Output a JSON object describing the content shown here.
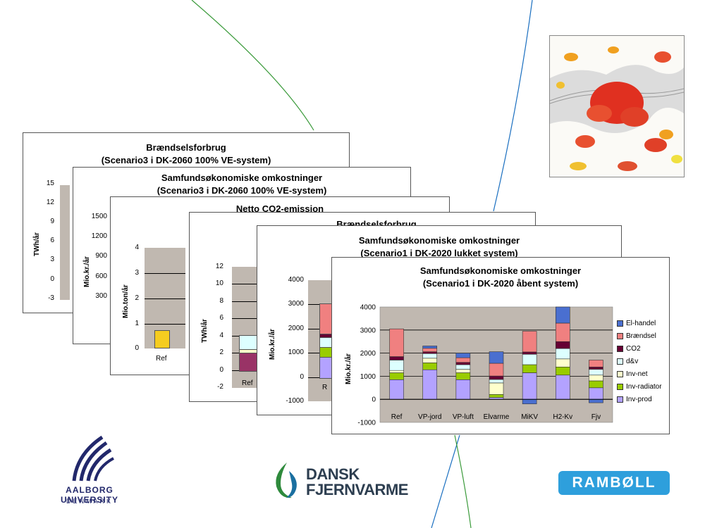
{
  "cards": {
    "c1": {
      "title_line1": "Brændselsforbrug",
      "title_line2": "(Scenario3 i DK-2060 100% VE-system)",
      "ylabel": "TWh/år",
      "ticks": [
        "15",
        "12",
        "9",
        "6",
        "3",
        "0",
        "-3"
      ]
    },
    "c2": {
      "title_line1": "Samfundsøkonomiske omkostninger",
      "title_line2": "(Scenario3 i DK-2060 100% VE-system)",
      "ylabel": "Mio.kr./år",
      "ticks": [
        "1500",
        "1200",
        "900",
        "600",
        "300"
      ]
    },
    "c3": {
      "title_line1": "Netto CO2-emission",
      "ylabel": "Mio.ton/år",
      "ticks": [
        "4",
        "3",
        "2",
        "1",
        "0"
      ],
      "xcat": "Ref"
    },
    "c4": {
      "title_line1": "Brændselsforbrug",
      "ylabel": "TWh/år",
      "ticks": [
        "12",
        "10",
        "8",
        "6",
        "4",
        "2",
        "0",
        "-2"
      ],
      "xcat": "Ref"
    },
    "c5": {
      "title_line1": "Samfundsøkonomiske omkostninger",
      "title_line2": "(Scenario1 i DK-2020 lukket system)",
      "ylabel": "Mio.kr./år",
      "ticks": [
        "4000",
        "3000",
        "2000",
        "1000",
        "0",
        "-1000"
      ],
      "xcat": "R"
    }
  },
  "chart_data": {
    "type": "bar",
    "stacked": true,
    "title": "Samfundsøkonomiske omkostninger",
    "subtitle": "(Scenario1 i DK-2020 åbent system)",
    "xlabel": "",
    "ylabel": "Mio.kr./år",
    "ylim": [
      -1000,
      4000
    ],
    "yticks": [
      4000,
      3000,
      2000,
      1000,
      0,
      -1000
    ],
    "grid": true,
    "legend_position": "right",
    "categories": [
      "Ref",
      "VP-jord",
      "VP-luft",
      "Elvarme",
      "MiKV",
      "H2-Kv",
      "Fjv"
    ],
    "series": [
      {
        "name": "Inv-prod",
        "color": "#b3a2ff",
        "values": [
          850,
          1280,
          850,
          80,
          1150,
          1050,
          500
        ]
      },
      {
        "name": "Inv-radiator",
        "color": "#99cc00",
        "values": [
          300,
          300,
          300,
          130,
          350,
          350,
          300
        ]
      },
      {
        "name": "Inv-net",
        "color": "#ffffcc",
        "values": [
          100,
          200,
          150,
          500,
          0,
          350,
          250
        ]
      },
      {
        "name": "d&v",
        "color": "#ddffff",
        "values": [
          450,
          200,
          200,
          150,
          450,
          450,
          250
        ]
      },
      {
        "name": "CO2",
        "color": "#660033",
        "values": [
          150,
          80,
          100,
          150,
          100,
          300,
          100
        ]
      },
      {
        "name": "Brændsel",
        "color": "#f08080",
        "values": [
          1200,
          150,
          200,
          550,
          900,
          800,
          300
        ]
      },
      {
        "name": "El-handel",
        "color": "#4a6fd0",
        "values": [
          0,
          100,
          200,
          500,
          -200,
          700,
          -150
        ]
      }
    ]
  },
  "logos": {
    "aau_line1": "AALBORG UNIVERSITY",
    "aau_line2": "DENMARK",
    "df_line1": "DANSK",
    "df_line2": "FJERNVARME",
    "ramboll": "RAMBØLL"
  },
  "colors": {
    "plot_bg": "#c0b8b0",
    "line_green": "#3a9a3a",
    "line_blue": "#1a6fc0",
    "ramboll_blue": "#2e9fdc",
    "aau_navy": "#22286b"
  }
}
